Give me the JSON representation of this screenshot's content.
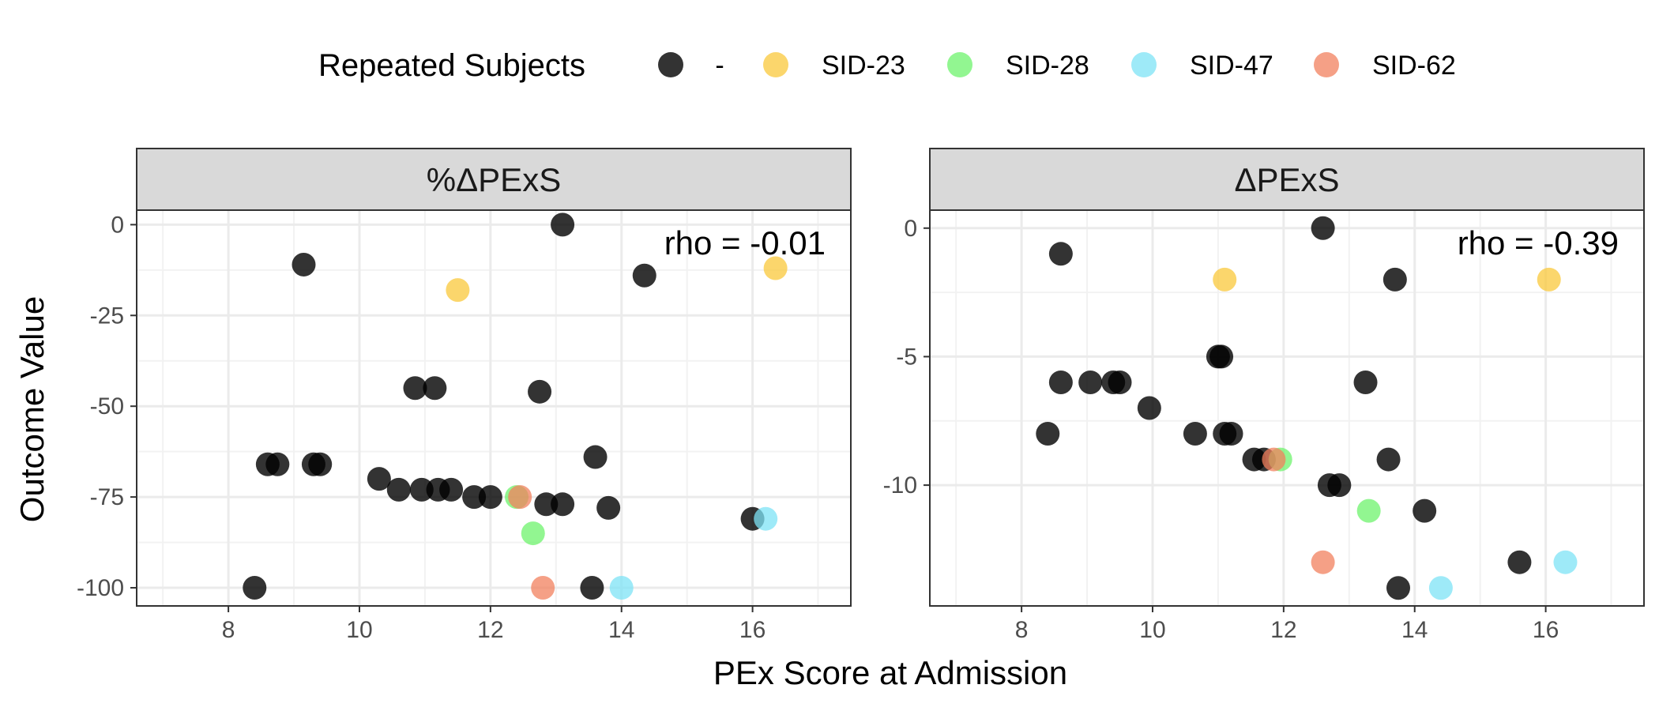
{
  "chart_data": {
    "type": "scatter",
    "xlabel": "PEx Score at Admission",
    "ylabel": "Outcome Value",
    "legend": {
      "title": "Repeated Subjects",
      "position": "top",
      "entries": [
        {
          "label": "-",
          "color": "#000000"
        },
        {
          "label": "SID-23",
          "color": "#F9C83B"
        },
        {
          "label": "SID-28",
          "color": "#6EF36C"
        },
        {
          "label": "SID-47",
          "color": "#7EE3F6"
        },
        {
          "label": "SID-62",
          "color": "#F1805E"
        }
      ]
    },
    "grid": true,
    "xlim": [
      6.6,
      17.5
    ],
    "xticks": [
      8,
      10,
      12,
      14,
      16
    ],
    "panels": [
      {
        "strip": "%ΔPExS",
        "annotation": "rho = -0.01",
        "ylim": [
          -105,
          4
        ],
        "yticks": [
          0,
          -25,
          -50,
          -75,
          -100
        ],
        "points": [
          {
            "x": 8.4,
            "y": -100,
            "group": "-"
          },
          {
            "x": 8.6,
            "y": -66,
            "group": "-"
          },
          {
            "x": 8.75,
            "y": -66,
            "group": "-"
          },
          {
            "x": 9.15,
            "y": -11,
            "group": "-"
          },
          {
            "x": 9.3,
            "y": -66,
            "group": "-"
          },
          {
            "x": 9.4,
            "y": -66,
            "group": "-"
          },
          {
            "x": 10.3,
            "y": -70,
            "group": "-"
          },
          {
            "x": 10.6,
            "y": -73,
            "group": "-"
          },
          {
            "x": 10.85,
            "y": -45,
            "group": "-"
          },
          {
            "x": 10.95,
            "y": -73,
            "group": "-"
          },
          {
            "x": 11.15,
            "y": -45,
            "group": "-"
          },
          {
            "x": 11.2,
            "y": -73,
            "group": "-"
          },
          {
            "x": 11.4,
            "y": -73,
            "group": "-"
          },
          {
            "x": 11.75,
            "y": -75,
            "group": "-"
          },
          {
            "x": 12.0,
            "y": -75,
            "group": "-"
          },
          {
            "x": 12.75,
            "y": -46,
            "group": "-"
          },
          {
            "x": 12.85,
            "y": -77,
            "group": "-"
          },
          {
            "x": 13.1,
            "y": 0,
            "group": "-"
          },
          {
            "x": 13.1,
            "y": -77,
            "group": "-"
          },
          {
            "x": 13.55,
            "y": -100,
            "group": "-"
          },
          {
            "x": 13.6,
            "y": -64,
            "group": "-"
          },
          {
            "x": 13.8,
            "y": -78,
            "group": "-"
          },
          {
            "x": 14.35,
            "y": -14,
            "group": "-"
          },
          {
            "x": 16.0,
            "y": -81,
            "group": "-"
          },
          {
            "x": 11.5,
            "y": -18,
            "group": "SID-23"
          },
          {
            "x": 16.35,
            "y": -12,
            "group": "SID-23"
          },
          {
            "x": 12.4,
            "y": -75,
            "group": "SID-28"
          },
          {
            "x": 12.65,
            "y": -85,
            "group": "SID-28"
          },
          {
            "x": 14.0,
            "y": -100,
            "group": "SID-47"
          },
          {
            "x": 16.2,
            "y": -81,
            "group": "SID-47"
          },
          {
            "x": 12.45,
            "y": -75,
            "group": "SID-62"
          },
          {
            "x": 12.8,
            "y": -100,
            "group": "SID-62"
          }
        ]
      },
      {
        "strip": "ΔPExS",
        "annotation": "rho = -0.39",
        "ylim": [
          -14.7,
          0.7
        ],
        "yticks": [
          0,
          -5,
          -10
        ],
        "points": [
          {
            "x": 8.4,
            "y": -8,
            "group": "-"
          },
          {
            "x": 8.6,
            "y": -1,
            "group": "-"
          },
          {
            "x": 8.6,
            "y": -6,
            "group": "-"
          },
          {
            "x": 9.05,
            "y": -6,
            "group": "-"
          },
          {
            "x": 9.4,
            "y": -6,
            "group": "-"
          },
          {
            "x": 9.5,
            "y": -6,
            "group": "-"
          },
          {
            "x": 9.95,
            "y": -7,
            "group": "-"
          },
          {
            "x": 10.65,
            "y": -8,
            "group": "-"
          },
          {
            "x": 11.0,
            "y": -5,
            "group": "-"
          },
          {
            "x": 11.05,
            "y": -5,
            "group": "-"
          },
          {
            "x": 11.1,
            "y": -8,
            "group": "-"
          },
          {
            "x": 11.2,
            "y": -8,
            "group": "-"
          },
          {
            "x": 11.55,
            "y": -9,
            "group": "-"
          },
          {
            "x": 11.7,
            "y": -9,
            "group": "-"
          },
          {
            "x": 12.6,
            "y": 0,
            "group": "-"
          },
          {
            "x": 12.7,
            "y": -10,
            "group": "-"
          },
          {
            "x": 12.85,
            "y": -10,
            "group": "-"
          },
          {
            "x": 13.25,
            "y": -6,
            "group": "-"
          },
          {
            "x": 13.6,
            "y": -9,
            "group": "-"
          },
          {
            "x": 13.7,
            "y": -2,
            "group": "-"
          },
          {
            "x": 13.75,
            "y": -14,
            "group": "-"
          },
          {
            "x": 14.15,
            "y": -11,
            "group": "-"
          },
          {
            "x": 15.6,
            "y": -13,
            "group": "-"
          },
          {
            "x": 11.1,
            "y": -2,
            "group": "SID-23"
          },
          {
            "x": 16.05,
            "y": -2,
            "group": "SID-23"
          },
          {
            "x": 11.95,
            "y": -9,
            "group": "SID-28"
          },
          {
            "x": 13.3,
            "y": -11,
            "group": "SID-28"
          },
          {
            "x": 14.4,
            "y": -14,
            "group": "SID-47"
          },
          {
            "x": 16.3,
            "y": -13,
            "group": "SID-47"
          },
          {
            "x": 11.85,
            "y": -9,
            "group": "SID-62"
          },
          {
            "x": 12.6,
            "y": -13,
            "group": "SID-62"
          }
        ]
      }
    ]
  }
}
